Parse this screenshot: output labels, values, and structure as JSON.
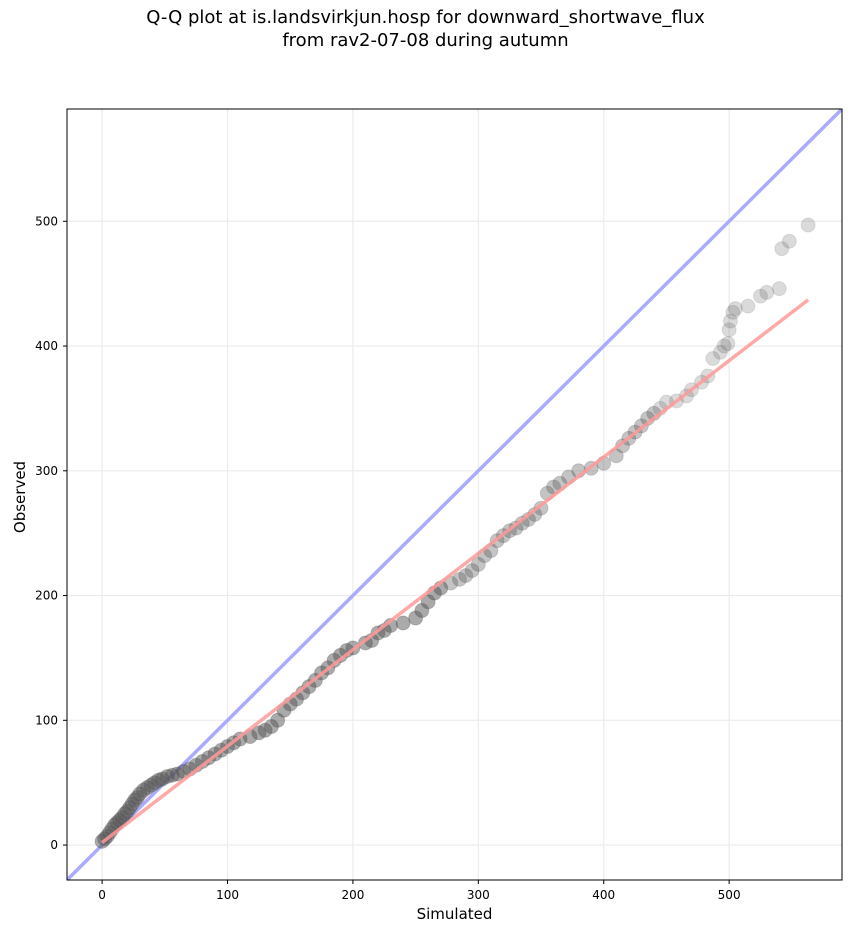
{
  "chart_data": {
    "type": "scatter",
    "title": "Q-Q plot at is.landsvirkjun.hosp for downward_shortwave_flux",
    "subtitle": "from rav2-07-08 during autumn",
    "xlabel": "Simulated",
    "ylabel": "Observed",
    "xlim": [
      -28,
      590
    ],
    "ylim": [
      -28,
      590
    ],
    "xticks": [
      0,
      100,
      200,
      300,
      400,
      500
    ],
    "yticks": [
      0,
      100,
      200,
      300,
      400,
      500
    ],
    "grid": true,
    "reference_line": {
      "slope": 1,
      "intercept": 0,
      "color": "#aaaaff"
    },
    "fit_line": {
      "x": [
        0,
        563
      ],
      "y": [
        2,
        437
      ],
      "color": "#ff9999"
    },
    "series": [
      {
        "x": [
          0,
          2,
          4,
          6,
          8,
          10,
          12,
          14,
          16,
          18,
          20,
          22,
          24,
          26,
          28,
          30,
          33,
          36,
          39,
          42,
          45,
          48,
          52,
          56,
          60,
          65,
          70,
          75,
          80,
          85,
          90,
          95,
          100,
          105,
          110,
          118,
          125,
          130,
          135,
          140,
          145,
          150,
          155,
          160,
          165,
          170,
          175,
          180,
          185,
          190,
          195,
          200,
          210,
          215,
          220,
          225,
          230,
          240,
          250,
          255,
          260,
          265,
          270,
          278,
          285,
          290,
          295,
          300,
          305,
          310,
          315,
          320,
          325,
          330,
          335,
          340,
          345,
          350,
          355,
          360,
          365,
          372,
          380,
          390,
          400,
          410,
          415,
          420,
          425,
          430,
          435,
          440,
          445,
          450,
          458,
          466,
          470,
          478,
          483,
          487,
          493,
          496,
          499,
          500,
          501,
          503,
          505,
          515,
          525,
          530,
          540,
          542,
          548,
          563
        ],
        "y": [
          3,
          5,
          7,
          10,
          13,
          16,
          18,
          20,
          22,
          25,
          27,
          30,
          33,
          36,
          38,
          41,
          44,
          46,
          48,
          50,
          52,
          53,
          55,
          56,
          57,
          59,
          61,
          64,
          67,
          70,
          73,
          76,
          79,
          82,
          85,
          87,
          90,
          92,
          95,
          100,
          108,
          113,
          117,
          122,
          127,
          132,
          138,
          142,
          148,
          152,
          156,
          158,
          162,
          164,
          170,
          172,
          176,
          178,
          182,
          188,
          195,
          202,
          206,
          210,
          213,
          216,
          220,
          225,
          232,
          236,
          244,
          248,
          252,
          254,
          258,
          261,
          265,
          270,
          282,
          287,
          290,
          295,
          300,
          302,
          306,
          312,
          320,
          326,
          331,
          336,
          342,
          346,
          350,
          355,
          356,
          360,
          365,
          371,
          376,
          390,
          395,
          400,
          402,
          413,
          420,
          427,
          430,
          432,
          440,
          443,
          446,
          478,
          484,
          497
        ]
      }
    ]
  }
}
